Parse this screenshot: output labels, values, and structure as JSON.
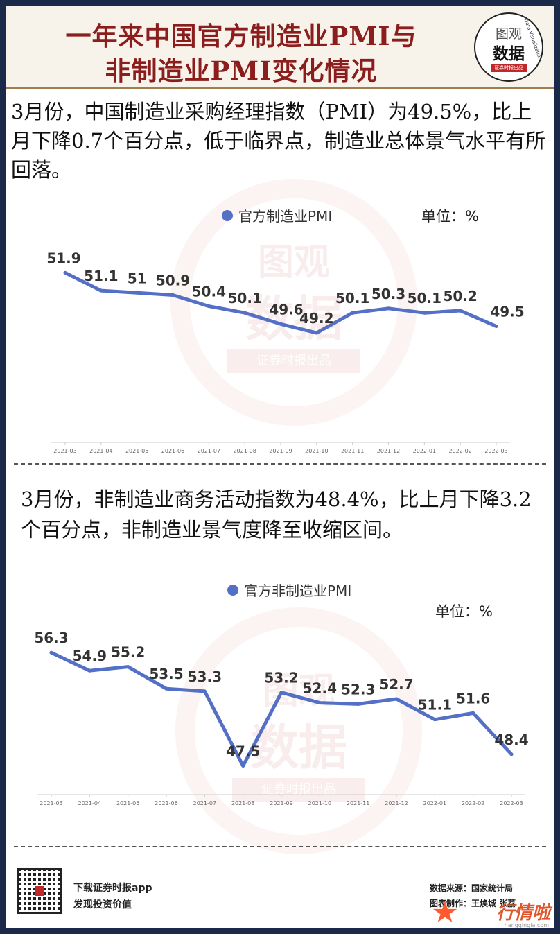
{
  "header": {
    "title_line1": "一年来中国官方制造业PMI与",
    "title_line2": "非制造业PMI变化情况",
    "logo_line1": "图观",
    "logo_line2": "数据",
    "logo_sub": "证券时报出品",
    "logo_tagline": "Data Visualization"
  },
  "section1": {
    "paragraph": "3月份，中国制造业采购经理指数（PMI）为49.5%，比上月下降0.7个百分点，低于临界点，制造业总体景气水平有所回落。",
    "unit": "单位：%"
  },
  "section2": {
    "paragraph": "3月份，非制造业商务活动指数为48.4%，比上月下降3.2个百分点，非制造业景气度降至收缩区间。",
    "unit": "单位：%"
  },
  "watermark": {
    "line1": "图观",
    "line2": "数据",
    "line3": "证券时报出品"
  },
  "footer": {
    "app_line1": "下载证券时报app",
    "app_line2": "发现投资价值",
    "source": "数据来源：国家统计局",
    "maker": "图表制作：王焕城 张荔",
    "brand": "行情啦",
    "brand_sub": "hangqingla.com"
  },
  "colors": {
    "line": "#5470c6",
    "title": "#8b1d1d",
    "background": "#1c2a4a"
  },
  "chart_data": [
    {
      "type": "line",
      "x": [
        "2021-03",
        "2021-04",
        "2021-05",
        "2021-06",
        "2021-07",
        "2021-08",
        "2021-09",
        "2021-10",
        "2021-11",
        "2021-12",
        "2022-01",
        "2022-02",
        "2022-03"
      ],
      "series": [
        {
          "name": "官方制造业PMI",
          "values": [
            51.9,
            51.1,
            51,
            50.9,
            50.4,
            50.1,
            49.6,
            49.2,
            50.1,
            50.3,
            50.1,
            50.2,
            49.5
          ]
        }
      ],
      "ylim": [
        46,
        53
      ],
      "grid": false,
      "legend": "top-center"
    },
    {
      "type": "line",
      "x": [
        "2021-03",
        "2021-04",
        "2021-05",
        "2021-06",
        "2021-07",
        "2021-08",
        "2021-09",
        "2021-10",
        "2021-11",
        "2021-12",
        "2022-01",
        "2022-02",
        "2022-03"
      ],
      "series": [
        {
          "name": "官方非制造业PMI",
          "values": [
            56.3,
            54.9,
            55.2,
            53.5,
            53.3,
            47.5,
            53.2,
            52.4,
            52.3,
            52.7,
            51.1,
            51.6,
            48.4
          ]
        }
      ],
      "ylim": [
        45.8,
        58.2
      ],
      "grid": false,
      "legend": "top-center"
    }
  ]
}
